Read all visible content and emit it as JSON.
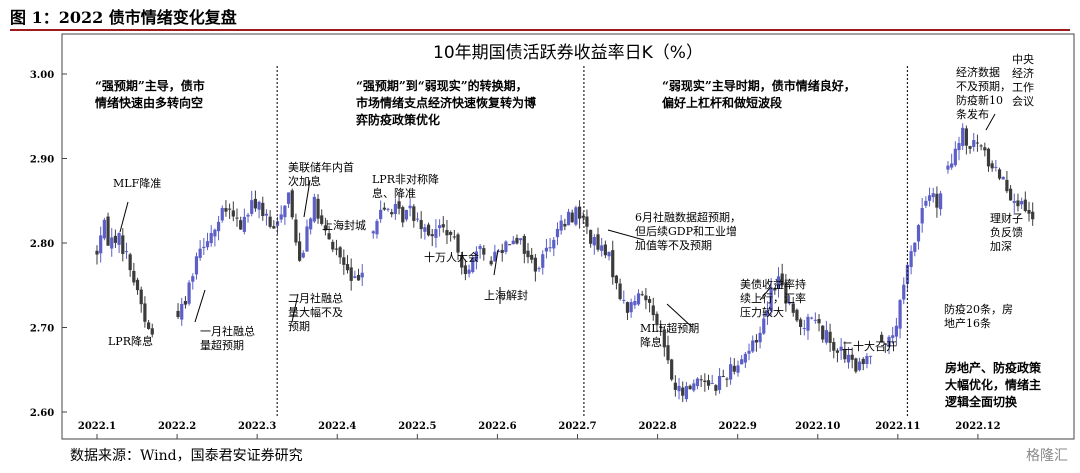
{
  "figure": {
    "title": "图 1：2022 债市情绪变化复盘",
    "source": "数据来源：Wind，国泰君安证券研究",
    "watermark": "格隆汇"
  },
  "chart_data": {
    "type": "candlestick",
    "title": "10年期国债活跃券收益率日K（%）",
    "ylim": [
      2.6,
      3.0
    ],
    "yticks": [
      "2.60",
      "2.70",
      "2.80",
      "2.90",
      "3.00"
    ],
    "xticks": [
      "2022.1",
      "2022.2",
      "2022.3",
      "2022.4",
      "2022.5",
      "2022.6",
      "2022.7",
      "2022.8",
      "2022.9",
      "2022.10",
      "2022.11",
      "2022.12"
    ],
    "xlim_months": [
      0,
      12
    ],
    "grid": false,
    "colors": {
      "up": "#5b5fc7",
      "down": "#3b3b3b",
      "divider": "#222222"
    },
    "anchors": [
      [
        0.0,
        2.79
      ],
      [
        0.05,
        2.81
      ],
      [
        0.1,
        2.82
      ],
      [
        0.15,
        2.8
      ],
      [
        0.25,
        2.81
      ],
      [
        0.35,
        2.79
      ],
      [
        0.45,
        2.76
      ],
      [
        0.55,
        2.73
      ],
      [
        0.62,
        2.7
      ],
      [
        0.7,
        2.69
      ],
      [
        0.78,
        2.71
      ],
      [
        0.85,
        2.72
      ],
      [
        0.92,
        2.72
      ],
      [
        1.0,
        2.72
      ],
      [
        1.05,
        2.72
      ],
      [
        1.1,
        2.73
      ],
      [
        1.15,
        2.75
      ],
      [
        1.22,
        2.78
      ],
      [
        1.3,
        2.8
      ],
      [
        1.4,
        2.81
      ],
      [
        1.5,
        2.82
      ],
      [
        1.6,
        2.84
      ],
      [
        1.7,
        2.83
      ],
      [
        1.8,
        2.82
      ],
      [
        1.9,
        2.84
      ],
      [
        2.0,
        2.85
      ],
      [
        2.1,
        2.83
      ],
      [
        2.2,
        2.81
      ],
      [
        2.3,
        2.84
      ],
      [
        2.4,
        2.86
      ],
      [
        2.48,
        2.8
      ],
      [
        2.55,
        2.78
      ],
      [
        2.62,
        2.82
      ],
      [
        2.7,
        2.85
      ],
      [
        2.8,
        2.82
      ],
      [
        2.9,
        2.8
      ],
      [
        3.0,
        2.79
      ],
      [
        3.1,
        2.77
      ],
      [
        3.2,
        2.75
      ],
      [
        3.3,
        2.77
      ],
      [
        3.4,
        2.8
      ],
      [
        3.5,
        2.83
      ],
      [
        3.6,
        2.84
      ],
      [
        3.7,
        2.84
      ],
      [
        3.8,
        2.83
      ],
      [
        3.9,
        2.84
      ],
      [
        4.0,
        2.83
      ],
      [
        4.1,
        2.82
      ],
      [
        4.2,
        2.81
      ],
      [
        4.3,
        2.82
      ],
      [
        4.4,
        2.81
      ],
      [
        4.5,
        2.79
      ],
      [
        4.6,
        2.77
      ],
      [
        4.7,
        2.78
      ],
      [
        4.8,
        2.79
      ],
      [
        4.9,
        2.78
      ],
      [
        5.0,
        2.79
      ],
      [
        5.1,
        2.8
      ],
      [
        5.2,
        2.81
      ],
      [
        5.3,
        2.8
      ],
      [
        5.4,
        2.78
      ],
      [
        5.5,
        2.77
      ],
      [
        5.6,
        2.79
      ],
      [
        5.7,
        2.81
      ],
      [
        5.8,
        2.82
      ],
      [
        5.9,
        2.83
      ],
      [
        6.0,
        2.84
      ],
      [
        6.1,
        2.82
      ],
      [
        6.2,
        2.8
      ],
      [
        6.3,
        2.79
      ],
      [
        6.4,
        2.78
      ],
      [
        6.5,
        2.75
      ],
      [
        6.6,
        2.72
      ],
      [
        6.7,
        2.73
      ],
      [
        6.8,
        2.74
      ],
      [
        6.9,
        2.73
      ],
      [
        7.0,
        2.71
      ],
      [
        7.1,
        2.67
      ],
      [
        7.2,
        2.63
      ],
      [
        7.3,
        2.62
      ],
      [
        7.4,
        2.63
      ],
      [
        7.5,
        2.64
      ],
      [
        7.6,
        2.64
      ],
      [
        7.7,
        2.63
      ],
      [
        7.8,
        2.64
      ],
      [
        7.9,
        2.65
      ],
      [
        8.0,
        2.66
      ],
      [
        8.1,
        2.67
      ],
      [
        8.2,
        2.68
      ],
      [
        8.3,
        2.7
      ],
      [
        8.4,
        2.74
      ],
      [
        8.5,
        2.76
      ],
      [
        8.55,
        2.75
      ],
      [
        8.62,
        2.73
      ],
      [
        8.7,
        2.71
      ],
      [
        8.8,
        2.7
      ],
      [
        8.9,
        2.72
      ],
      [
        9.0,
        2.7
      ],
      [
        9.1,
        2.69
      ],
      [
        9.2,
        2.68
      ],
      [
        9.3,
        2.67
      ],
      [
        9.4,
        2.66
      ],
      [
        9.5,
        2.65
      ],
      [
        9.6,
        2.66
      ],
      [
        9.7,
        2.68
      ],
      [
        9.8,
        2.69
      ],
      [
        9.9,
        2.68
      ],
      [
        10.0,
        2.71
      ],
      [
        10.1,
        2.76
      ],
      [
        10.2,
        2.8
      ],
      [
        10.3,
        2.84
      ],
      [
        10.4,
        2.86
      ],
      [
        10.5,
        2.84
      ],
      [
        10.6,
        2.88
      ],
      [
        10.7,
        2.9
      ],
      [
        10.8,
        2.93
      ],
      [
        10.9,
        2.91
      ],
      [
        11.0,
        2.92
      ],
      [
        11.1,
        2.9
      ],
      [
        11.2,
        2.89
      ],
      [
        11.3,
        2.88
      ],
      [
        11.4,
        2.86
      ],
      [
        11.5,
        2.85
      ],
      [
        11.6,
        2.83
      ],
      [
        11.7,
        2.83
      ]
    ],
    "dividers_x_months": [
      2.25,
      6.08,
      10.12
    ]
  },
  "annotations": {
    "phase1": [
      "“强预期”主导，债市",
      "情绪快速由多转向空"
    ],
    "phase2": [
      "“强预期”到“弱现实”的转换期，",
      "市场情绪支点经济快速恢复转为博",
      "弈防疫政策优化"
    ],
    "phase3": [
      "“弱现实”主导时期，债市情绪良好，",
      "偏好上杠杆和做短波段"
    ],
    "phase4": [
      "经济数据",
      "不及预期，",
      "防疫新10",
      "条发布"
    ],
    "central": [
      "中央",
      "经济",
      "工作",
      "会议"
    ],
    "mlf_cut": "MLF降准",
    "lpr_cut": "LPR降息",
    "jan_social": [
      "一月社融总",
      "量超预期"
    ],
    "us_fed": [
      "美联储年内首",
      "次加息"
    ],
    "feb_social": [
      "二月社融总",
      "量大幅不及",
      "预期"
    ],
    "shanghai_lock": "上海封城",
    "lpr_rate": [
      "LPR非对称降",
      "息、降准"
    ],
    "peoples_congress": "十万人大会",
    "shanghai_unlock": "上海解封",
    "june_data": [
      "6月社融数据超预期，",
      "但后续GDP和工业增",
      "加值等不及预期"
    ],
    "mlf_rate": [
      "MLF超预期",
      "降息"
    ],
    "us_yield": [
      "美债收益率持",
      "续上行，汇率",
      "压力较大"
    ],
    "congress20": "二十大召开",
    "wealth_mgmt": [
      "理财子",
      "负反馈",
      "加深"
    ],
    "nov_policy": [
      "防疫20条，房",
      "地产16条"
    ],
    "realestate": [
      "房地产、防疫政策",
      "大幅优化，情绪主",
      "逻辑全面切换"
    ]
  }
}
